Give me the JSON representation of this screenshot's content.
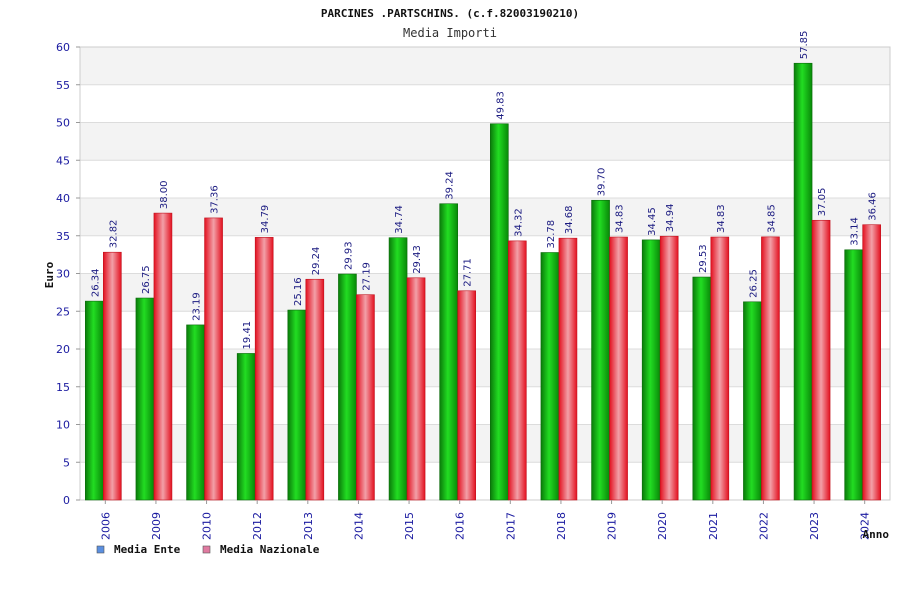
{
  "chart_data": {
    "type": "bar",
    "title": "PARCINES .PARTSCHINS. (c.f.82003190210)",
    "subtitle": "Media Importi",
    "xlabel": "Anno",
    "ylabel": "Euro",
    "ylim": [
      0,
      60
    ],
    "yticks": [
      "0",
      "5",
      "10",
      "15",
      "20",
      "25",
      "30",
      "35",
      "40",
      "45",
      "50",
      "55",
      "60"
    ],
    "categories": [
      "2006",
      "2009",
      "2010",
      "2012",
      "2013",
      "2014",
      "2015",
      "2016",
      "2017",
      "2018",
      "2019",
      "2020",
      "2021",
      "2022",
      "2023",
      "2024"
    ],
    "series": [
      {
        "name": "Media Ente",
        "color": "#11aa11",
        "values": [
          26.34,
          26.75,
          23.19,
          19.41,
          25.16,
          29.93,
          34.74,
          39.24,
          49.83,
          32.78,
          39.7,
          34.45,
          29.53,
          26.25,
          57.85,
          33.14
        ],
        "labels": [
          "26.34",
          "26.75",
          "23.19",
          "19.41",
          "25.16",
          "29.93",
          "34.74",
          "39.24",
          "49.83",
          "32.78",
          "39.70",
          "34.45",
          "29.53",
          "26.25",
          "57.85",
          "33.14"
        ]
      },
      {
        "name": "Media Nazionale",
        "color": "#e8283a",
        "values": [
          32.82,
          38.0,
          37.36,
          34.79,
          29.24,
          27.19,
          29.43,
          27.71,
          34.32,
          34.68,
          34.83,
          34.94,
          34.83,
          34.85,
          37.05,
          36.46
        ],
        "labels": [
          "32.82",
          "38.00",
          "37.36",
          "34.79",
          "29.24",
          "27.19",
          "29.43",
          "27.71",
          "34.32",
          "34.68",
          "34.83",
          "34.94",
          "34.83",
          "34.85",
          "37.05",
          "36.46"
        ]
      }
    ],
    "legend": [
      {
        "name": "Media Ente",
        "color": "#5b8fe0"
      },
      {
        "name": "Media Nazionale",
        "color": "#e07aa0"
      }
    ],
    "grid": true,
    "legend_position": "bottom-left"
  }
}
